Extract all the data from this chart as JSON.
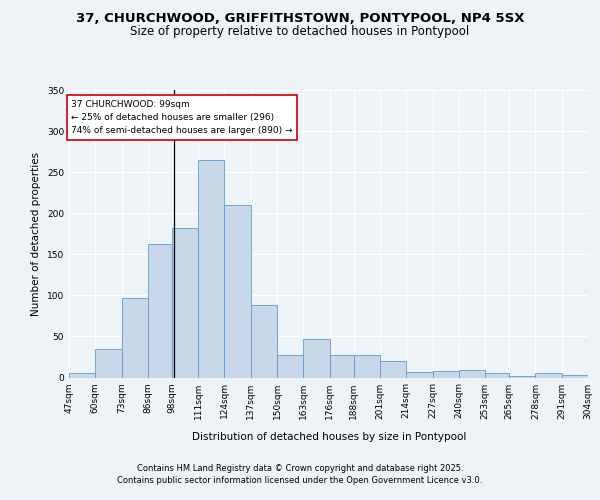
{
  "title1": "37, CHURCHWOOD, GRIFFITHSTOWN, PONTYPOOL, NP4 5SX",
  "title2": "Size of property relative to detached houses in Pontypool",
  "xlabel": "Distribution of detached houses by size in Pontypool",
  "ylabel": "Number of detached properties",
  "footer1": "Contains HM Land Registry data © Crown copyright and database right 2025.",
  "footer2": "Contains public sector information licensed under the Open Government Licence v3.0.",
  "annotation_title": "37 CHURCHWOOD: 99sqm",
  "annotation_line1": "← 25% of detached houses are smaller (296)",
  "annotation_line2": "74% of semi-detached houses are larger (890) →",
  "bar_color": "#c8d8e8",
  "bar_edge_color": "#5b9bd5",
  "vline_x": 99,
  "vline_color": "#000000",
  "bin_edges": [
    47,
    60,
    73,
    86,
    98,
    111,
    124,
    137,
    150,
    163,
    176,
    188,
    201,
    214,
    227,
    240,
    253,
    265,
    278,
    291,
    304
  ],
  "bin_labels": [
    "47sqm",
    "60sqm",
    "73sqm",
    "86sqm",
    "98sqm",
    "111sqm",
    "124sqm",
    "137sqm",
    "150sqm",
    "163sqm",
    "176sqm",
    "188sqm",
    "201sqm",
    "214sqm",
    "227sqm",
    "240sqm",
    "253sqm",
    "265sqm",
    "278sqm",
    "291sqm",
    "304sqm"
  ],
  "bar_heights": [
    5,
    35,
    97,
    163,
    182,
    265,
    210,
    88,
    27,
    47,
    27,
    27,
    20,
    7,
    8,
    9,
    5,
    2,
    5,
    3
  ],
  "ylim": [
    0,
    350
  ],
  "yticks": [
    0,
    50,
    100,
    150,
    200,
    250,
    300,
    350
  ],
  "bg_color": "#eef3f8",
  "plot_bg_color": "#eef3f8",
  "grid_color": "#ffffff",
  "annotation_box_color": "#ffffff",
  "annotation_box_edge": "#cc0000",
  "title1_fontsize": 9.5,
  "title2_fontsize": 8.5,
  "tick_fontsize": 6.5,
  "ylabel_fontsize": 7.5,
  "xlabel_fontsize": 7.5,
  "annotation_fontsize": 6.5,
  "footer_fontsize": 6.0
}
